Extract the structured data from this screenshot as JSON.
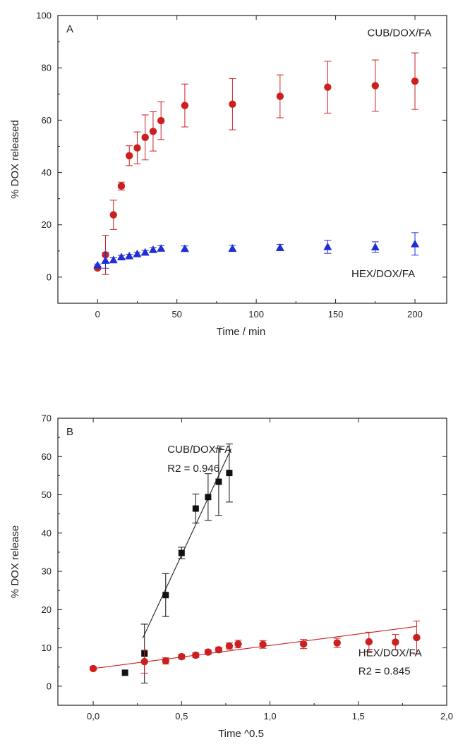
{
  "chart_data": [
    {
      "type": "scatter",
      "panel_label": "A",
      "xlabel": "Time / min",
      "ylabel": "% DOX released",
      "xlim": [
        -25,
        220
      ],
      "ylim": [
        -10,
        100
      ],
      "xticks": [
        0,
        50,
        100,
        150,
        200
      ],
      "yticks": [
        0,
        20,
        40,
        60,
        80,
        100
      ],
      "xtick_labels": [
        "0",
        "50",
        "100",
        "150",
        "200"
      ],
      "ytick_labels": [
        "0",
        "20",
        "40",
        "60",
        "80",
        "100"
      ],
      "grid": false,
      "series": [
        {
          "name": "CUB/DOX/FA",
          "marker": "circle",
          "color": "#cc2020",
          "x": [
            0,
            5,
            10,
            15,
            20,
            25,
            30,
            35,
            40,
            55,
            85,
            115,
            145,
            175,
            200
          ],
          "y": [
            3.5,
            8.5,
            23.8,
            34.8,
            46.4,
            49.4,
            53.4,
            55.7,
            59.8,
            65.6,
            66.1,
            69.1,
            72.6,
            73.2,
            74.9
          ],
          "err": [
            0.6,
            7.5,
            5.6,
            1.5,
            3.8,
            6.1,
            8.6,
            7.5,
            7.2,
            8.2,
            9.8,
            8.2,
            9.9,
            9.8,
            10.8
          ]
        },
        {
          "name": "HEX/DOX/FA",
          "marker": "triangle",
          "color": "#1f2fd6",
          "x": [
            0,
            5,
            10,
            15,
            20,
            25,
            30,
            35,
            40,
            55,
            85,
            115,
            145,
            175,
            200
          ],
          "y": [
            4.6,
            6.4,
            6.6,
            7.7,
            8.1,
            8.9,
            9.5,
            10.5,
            11.0,
            10.9,
            11.0,
            11.3,
            11.6,
            11.5,
            12.7
          ],
          "err": [
            0.4,
            3.0,
            0.8,
            0.6,
            0.6,
            0.6,
            0.7,
            0.8,
            1.0,
            1.0,
            1.2,
            1.2,
            2.5,
            2.0,
            4.3
          ]
        }
      ],
      "annotations": [
        {
          "text": "CUB/DOX/FA",
          "x": 170,
          "y": 92
        },
        {
          "text": "HEX/DOX/FA",
          "x": 160,
          "y": 0
        }
      ]
    },
    {
      "type": "scatter",
      "panel_label": "B",
      "xlabel": "Time ^0.5",
      "ylabel": "% DOX release",
      "xlim": [
        -0.2,
        2.0
      ],
      "ylim": [
        -5,
        70
      ],
      "xticks": [
        0.0,
        0.5,
        1.0,
        1.5,
        2.0
      ],
      "yticks": [
        0,
        10,
        20,
        30,
        40,
        50,
        60,
        70
      ],
      "xtick_labels": [
        "0,0",
        "0,5",
        "1,0",
        "1,5",
        "2,0"
      ],
      "ytick_labels": [
        "0",
        "10",
        "20",
        "30",
        "40",
        "50",
        "60",
        "70"
      ],
      "grid": false,
      "series": [
        {
          "name": "CUB/DOX/FA",
          "marker": "square",
          "color": "#111111",
          "x": [
            0.18,
            0.29,
            0.41,
            0.5,
            0.58,
            0.65,
            0.71,
            0.77
          ],
          "y": [
            3.5,
            8.5,
            23.8,
            34.8,
            46.4,
            49.4,
            53.4,
            55.7
          ],
          "err": [
            0,
            7.7,
            5.6,
            1.5,
            3.8,
            6.1,
            8.8,
            7.6
          ],
          "fit": {
            "x": [
              0.28,
              0.78
            ],
            "y": [
              12.5,
              62.0
            ],
            "color": "#222222"
          }
        },
        {
          "name": "HEX/DOX/FA",
          "marker": "circle",
          "color": "#cc2020",
          "x": [
            0.0,
            0.29,
            0.41,
            0.5,
            0.58,
            0.65,
            0.71,
            0.77,
            0.82,
            0.96,
            1.19,
            1.38,
            1.56,
            1.71,
            1.83
          ],
          "y": [
            4.6,
            6.4,
            6.6,
            7.7,
            8.1,
            8.9,
            9.5,
            10.5,
            11.0,
            10.9,
            11.0,
            11.3,
            11.6,
            11.5,
            12.7
          ],
          "err": [
            0.4,
            3.0,
            0.8,
            0.6,
            0.6,
            0.6,
            0.7,
            0.8,
            1.0,
            1.0,
            1.2,
            1.2,
            2.5,
            2.0,
            4.3
          ],
          "fit": {
            "x": [
              0.0,
              1.83
            ],
            "y": [
              4.6,
              15.6
            ],
            "color": "#cc2020"
          }
        }
      ],
      "annotations": [
        {
          "text": "CUB/DOX/FA",
          "x": 0.42,
          "y": 61
        },
        {
          "text": "R2 = 0.946",
          "x": 0.42,
          "y": 56
        },
        {
          "text": "HEX/DOX/FA",
          "x": 1.5,
          "y": 7.8
        },
        {
          "text": "R2 = 0.845",
          "x": 1.5,
          "y": 3.0
        }
      ]
    }
  ]
}
